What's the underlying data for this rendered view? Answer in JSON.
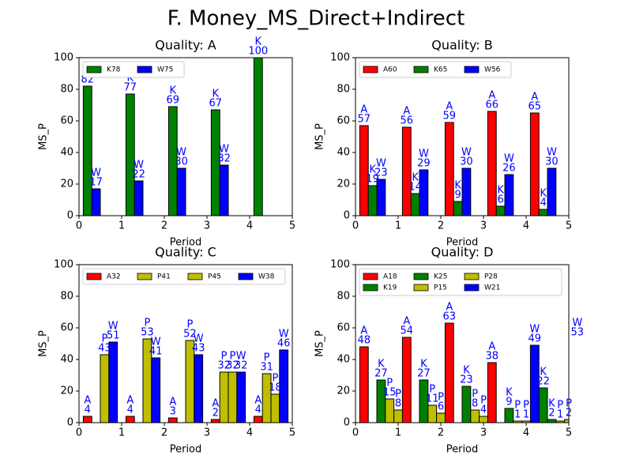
{
  "title": "F. Money_MS_Direct+Indirect",
  "chart_data": [
    {
      "type": "bar",
      "title": "Quality: A",
      "xlabel": "Period",
      "ylabel": "MS_P",
      "x": [
        0,
        1,
        2,
        3,
        4
      ],
      "xlim": [
        0,
        5
      ],
      "ylim": [
        0,
        100
      ],
      "xticks": [
        0,
        1,
        2,
        3,
        4,
        5
      ],
      "yticks": [
        0,
        20,
        40,
        60,
        80,
        100
      ],
      "legend": "upper left",
      "series": [
        {
          "name": "K78",
          "label": "K",
          "color": "#008000",
          "values": [
            82,
            77,
            69,
            67,
            100
          ]
        },
        {
          "name": "W75",
          "label": "W",
          "color": "#0000ff",
          "values": [
            17,
            22,
            30,
            32,
            null
          ]
        }
      ]
    },
    {
      "type": "bar",
      "title": "Quality: B",
      "xlabel": "Period",
      "ylabel": "MS_P",
      "x": [
        0,
        1,
        2,
        3,
        4
      ],
      "xlim": [
        0,
        5
      ],
      "ylim": [
        0,
        100
      ],
      "xticks": [
        0,
        1,
        2,
        3,
        4,
        5
      ],
      "yticks": [
        0,
        20,
        40,
        60,
        80,
        100
      ],
      "legend": "upper left",
      "series": [
        {
          "name": "A60",
          "label": "A",
          "color": "#ff0000",
          "values": [
            57,
            56,
            59,
            66,
            65
          ]
        },
        {
          "name": "K65",
          "label": "K",
          "color": "#008000",
          "values": [
            19,
            14,
            9,
            6,
            4
          ]
        },
        {
          "name": "W56",
          "label": "W",
          "color": "#0000ff",
          "values": [
            23,
            29,
            30,
            26,
            30
          ]
        }
      ]
    },
    {
      "type": "bar",
      "title": "Quality: C",
      "xlabel": "Period",
      "ylabel": "MS_P",
      "x": [
        0,
        1,
        2,
        3,
        4
      ],
      "xlim": [
        0,
        5
      ],
      "ylim": [
        0,
        100
      ],
      "xticks": [
        0,
        1,
        2,
        3,
        4,
        5
      ],
      "yticks": [
        0,
        20,
        40,
        60,
        80,
        100
      ],
      "legend": "upper left",
      "series": [
        {
          "name": "A32",
          "label": "A",
          "color": "#ff0000",
          "values": [
            4,
            4,
            3,
            2,
            4
          ]
        },
        {
          "name": "P41",
          "label": "P",
          "color": "#bfbf00",
          "values": [
            null,
            null,
            null,
            32,
            31
          ]
        },
        {
          "name": "P45",
          "label": "P",
          "color": "#bfbf00",
          "values": [
            43,
            53,
            52,
            32,
            18
          ]
        },
        {
          "name": "W38",
          "label": "W",
          "color": "#0000ff",
          "values": [
            51,
            41,
            43,
            32,
            46
          ]
        }
      ]
    },
    {
      "type": "bar",
      "title": "Quality: D",
      "xlabel": "Period",
      "ylabel": "MS_P",
      "x": [
        0,
        1,
        2,
        3,
        4
      ],
      "xlim": [
        0,
        5
      ],
      "ylim": [
        0,
        100
      ],
      "xticks": [
        0,
        1,
        2,
        3,
        4,
        5
      ],
      "yticks": [
        0,
        20,
        40,
        60,
        80,
        100
      ],
      "legend": "upper left",
      "series": [
        {
          "name": "A18",
          "label": "A",
          "color": "#ff0000",
          "values": [
            48,
            54,
            63,
            38,
            null
          ]
        },
        {
          "name": "K19",
          "label": "K",
          "color": "#008000",
          "values": [
            null,
            null,
            null,
            null,
            22
          ]
        },
        {
          "name": "K25",
          "label": "K",
          "color": "#008000",
          "values": [
            27,
            27,
            23,
            9,
            2
          ]
        },
        {
          "name": "P15",
          "label": "P",
          "color": "#bfbf00",
          "values": [
            15,
            11,
            8,
            1,
            1
          ]
        },
        {
          "name": "P28",
          "label": "P",
          "color": "#bfbf00",
          "values": [
            8,
            6,
            4,
            1,
            2
          ]
        },
        {
          "name": "W21",
          "label": "W",
          "color": "#0000ff",
          "values": [
            null,
            null,
            null,
            49,
            53
          ]
        }
      ]
    }
  ]
}
